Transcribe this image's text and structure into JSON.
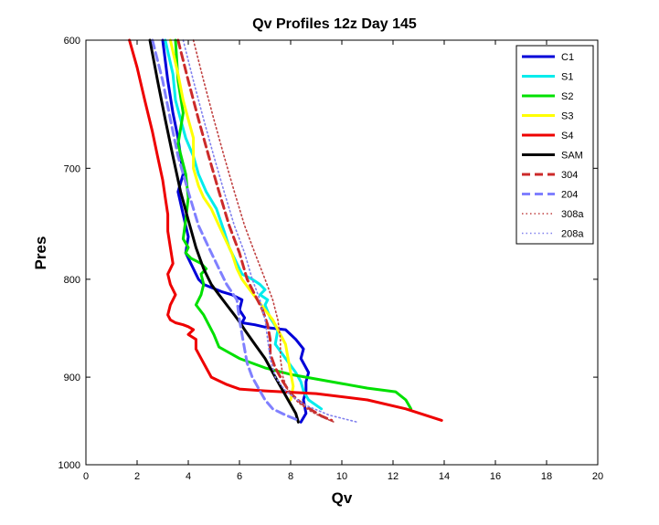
{
  "chart_data": {
    "type": "line",
    "title": "Qv Profiles 12z Day 145",
    "xlabel": "Qv",
    "ylabel": "Pres",
    "xlim": [
      0,
      20
    ],
    "ylim": [
      1000,
      600
    ],
    "y_axis": "reversed, log-pressure spacing",
    "xticks": [
      "0",
      "2",
      "4",
      "6",
      "8",
      "10",
      "12",
      "14",
      "16",
      "18",
      "20"
    ],
    "yticks": [
      "600",
      "700",
      "800",
      "900",
      "1000"
    ],
    "grid": false,
    "legend_position": "top-right",
    "series": [
      {
        "name": "C1",
        "color": "#0000d8",
        "style": "solid",
        "width": 3,
        "x": [
          3.0,
          3.2,
          3.4,
          3.6,
          3.7,
          3.8,
          3.6,
          3.8,
          4.0,
          3.9,
          4.1,
          4.2,
          4.3,
          4.4,
          4.6,
          4.9,
          5.3,
          5.7,
          6.1,
          6.0,
          6.2,
          6.1,
          6.6,
          7.1,
          7.8,
          8.0,
          8.2,
          8.5,
          8.4,
          8.7,
          8.6,
          8.6,
          8.5,
          8.6,
          8.4
        ],
        "y": [
          600,
          630,
          655,
          675,
          690,
          705,
          720,
          740,
          760,
          775,
          785,
          790,
          795,
          800,
          805,
          808,
          812,
          815,
          820,
          830,
          838,
          843,
          845,
          848,
          850,
          855,
          860,
          870,
          880,
          895,
          905,
          915,
          925,
          940,
          950
        ]
      },
      {
        "name": "S1",
        "color": "#00ecec",
        "style": "solid",
        "width": 3,
        "x": [
          3.1,
          3.4,
          3.5,
          3.7,
          3.9,
          4.2,
          4.4,
          4.7,
          5.1,
          5.4,
          5.6,
          5.9,
          6.1,
          6.5,
          6.8,
          7.0,
          6.8,
          7.1,
          7.0,
          7.2,
          7.5,
          7.4,
          7.8,
          8.2,
          8.4,
          8.5,
          8.7,
          9.2
        ],
        "y": [
          600,
          625,
          645,
          660,
          675,
          690,
          705,
          720,
          735,
          755,
          770,
          785,
          795,
          800,
          805,
          810,
          815,
          820,
          825,
          838,
          850,
          865,
          880,
          895,
          905,
          915,
          925,
          935
        ]
      },
      {
        "name": "S2",
        "color": "#00e000",
        "style": "solid",
        "width": 3,
        "x": [
          3.5,
          3.6,
          3.8,
          3.6,
          3.9,
          4.0,
          3.9,
          3.8,
          4.0,
          3.9,
          4.1,
          4.5,
          4.7,
          4.5,
          4.6,
          4.5,
          4.3,
          4.6,
          4.8,
          5.0,
          5.2,
          6.0,
          7.0,
          8.0,
          9.0,
          10.0,
          11.0,
          12.1,
          12.5,
          12.7
        ],
        "y": [
          600,
          630,
          655,
          680,
          705,
          725,
          745,
          762,
          770,
          775,
          780,
          785,
          790,
          795,
          805,
          815,
          825,
          835,
          845,
          855,
          868,
          880,
          890,
          897,
          902,
          907,
          912,
          916,
          925,
          935
        ]
      },
      {
        "name": "S3",
        "color": "#ffff00",
        "style": "solid",
        "width": 3,
        "x": [
          3.3,
          3.6,
          3.8,
          4.0,
          4.2,
          4.2,
          4.4,
          4.6,
          4.9,
          5.1,
          5.4,
          5.7,
          5.9,
          6.1,
          6.4,
          6.7,
          7.0,
          7.3,
          7.5,
          7.8,
          7.9,
          8.0,
          8.1,
          8.0
        ],
        "y": [
          600,
          625,
          645,
          660,
          675,
          700,
          715,
          725,
          735,
          745,
          760,
          775,
          790,
          800,
          810,
          820,
          830,
          840,
          850,
          865,
          880,
          895,
          910,
          925
        ]
      },
      {
        "name": "S4",
        "color": "#ee0000",
        "style": "solid",
        "width": 3,
        "x": [
          1.7,
          2.0,
          2.3,
          2.6,
          2.8,
          3.0,
          3.1,
          3.2,
          3.2,
          3.3,
          3.4,
          3.2,
          3.3,
          3.5,
          3.3,
          3.2,
          3.3,
          3.5,
          3.8,
          4.0,
          4.2,
          4.0,
          4.3,
          4.3,
          4.5,
          4.7,
          4.9,
          5.5,
          6.0,
          7.0,
          9.0,
          11.0,
          12.5,
          13.9
        ],
        "y": [
          600,
          620,
          645,
          670,
          690,
          710,
          725,
          740,
          755,
          770,
          785,
          795,
          805,
          815,
          825,
          835,
          840,
          843,
          845,
          847,
          850,
          855,
          860,
          870,
          880,
          890,
          900,
          908,
          913,
          915,
          918,
          925,
          935,
          948
        ]
      },
      {
        "name": "SAM",
        "color": "#000000",
        "style": "solid",
        "width": 3,
        "x": [
          2.5,
          2.8,
          3.1,
          3.4,
          3.7,
          4.0,
          4.3,
          4.6,
          4.9,
          5.2,
          5.5,
          5.8,
          6.0,
          6.2,
          6.6,
          7.0,
          7.3,
          7.6,
          7.9,
          8.2,
          8.3
        ],
        "y": [
          600,
          630,
          660,
          690,
          720,
          745,
          770,
          790,
          805,
          815,
          825,
          835,
          842,
          850,
          865,
          880,
          895,
          910,
          925,
          940,
          950
        ]
      },
      {
        "name": "304",
        "color": "#cc2a2a",
        "style": "dashed",
        "width": 3,
        "x": [
          3.6,
          4.0,
          4.4,
          4.8,
          5.2,
          5.6,
          6.0,
          6.3,
          6.6,
          6.9,
          7.1,
          7.2,
          7.2,
          7.4,
          7.7,
          8.0,
          8.4,
          8.8,
          9.2,
          9.6
        ],
        "y": [
          600,
          630,
          660,
          690,
          720,
          750,
          775,
          800,
          815,
          830,
          845,
          860,
          875,
          890,
          905,
          918,
          928,
          936,
          943,
          948
        ]
      },
      {
        "name": "204",
        "color": "#8080ff",
        "style": "dashed",
        "width": 3,
        "x": [
          2.6,
          3.0,
          3.3,
          3.6,
          4.0,
          4.4,
          4.8,
          5.2,
          5.5,
          5.9,
          6.0,
          6.1,
          6.2,
          6.3,
          6.5,
          6.8,
          7.0,
          7.3,
          7.8,
          8.3
        ],
        "y": [
          600,
          630,
          660,
          690,
          720,
          750,
          770,
          790,
          805,
          820,
          840,
          855,
          870,
          885,
          900,
          915,
          925,
          935,
          942,
          948
        ]
      },
      {
        "name": "308a",
        "color": "#c04040",
        "style": "dotted",
        "width": 1.6,
        "x": [
          4.2,
          4.6,
          5.0,
          5.4,
          5.8,
          6.2,
          6.6,
          7.0,
          7.3,
          7.5,
          7.6,
          7.6,
          7.7,
          7.9,
          8.3,
          8.8,
          9.2,
          9.7
        ],
        "y": [
          600,
          630,
          660,
          690,
          720,
          750,
          775,
          800,
          820,
          840,
          860,
          880,
          900,
          915,
          928,
          938,
          944,
          950
        ]
      },
      {
        "name": "208a",
        "color": "#8080ee",
        "style": "dotted",
        "width": 1.6,
        "x": [
          3.8,
          4.2,
          4.6,
          5.0,
          5.4,
          5.8,
          6.2,
          6.5,
          6.8,
          7.0,
          7.1,
          7.2,
          7.4,
          7.8,
          8.5,
          9.5,
          10.6
        ],
        "y": [
          600,
          630,
          660,
          690,
          720,
          750,
          775,
          800,
          820,
          840,
          860,
          880,
          900,
          915,
          930,
          942,
          950
        ]
      }
    ]
  }
}
